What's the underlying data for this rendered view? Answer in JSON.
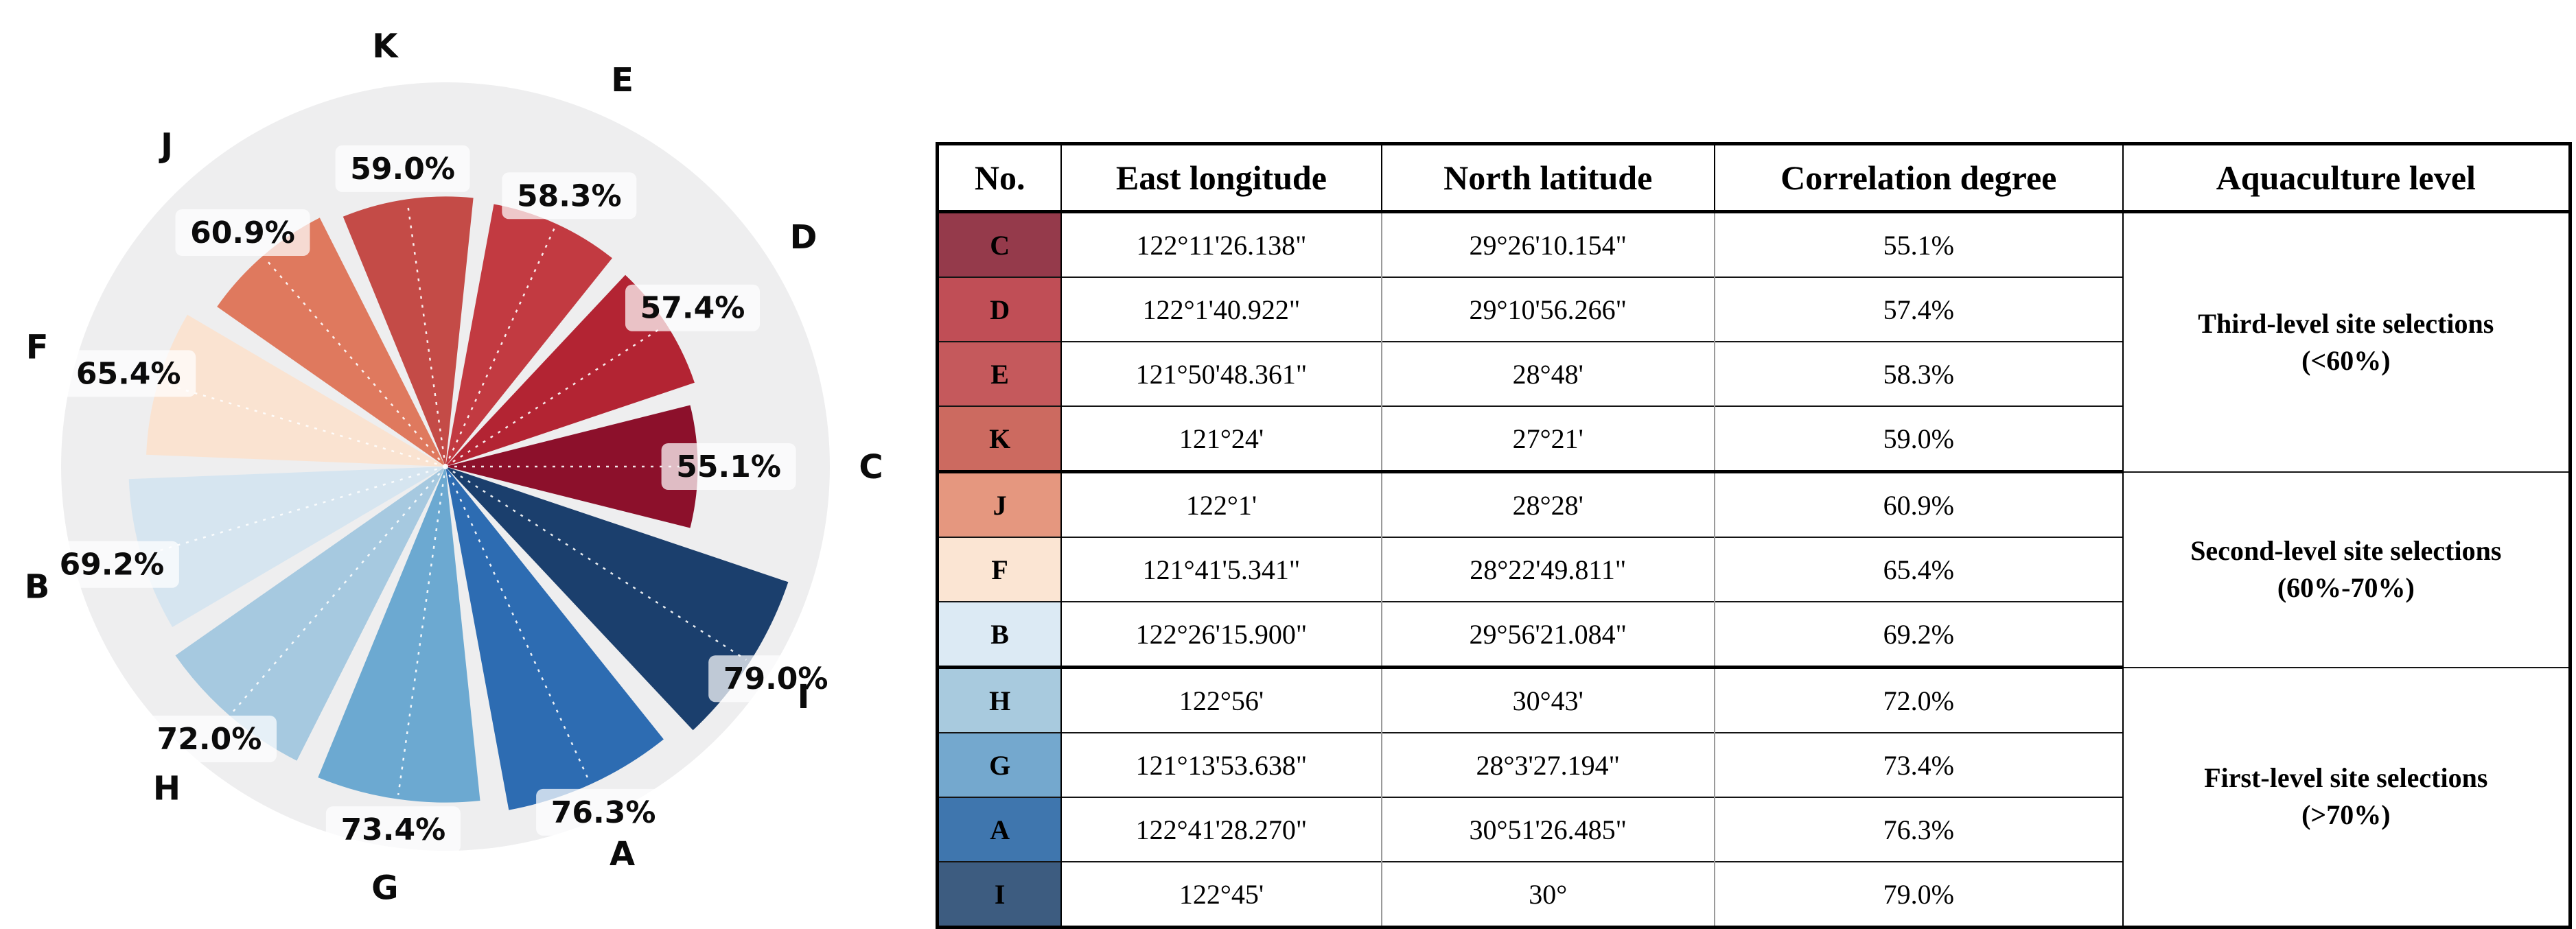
{
  "chart_data": {
    "type": "polar_rose_pie",
    "title": "",
    "value_unit": "%",
    "max_value": 79.0,
    "background_circle_color": "#eeeeef",
    "label_chip_bg": "rgba(255,255,255,0.72)",
    "centerline_color": "#ffffff",
    "legend_position": "none",
    "slices_ccw_from_east": [
      {
        "id": "C",
        "value": 55.1,
        "label": "55.1%",
        "color": "#8c102b"
      },
      {
        "id": "D",
        "value": 57.4,
        "label": "57.4%",
        "color": "#b32433"
      },
      {
        "id": "E",
        "value": 58.3,
        "label": "58.3%",
        "color": "#c23a41"
      },
      {
        "id": "K",
        "value": 59.0,
        "label": "59.0%",
        "color": "#c44b47"
      },
      {
        "id": "J",
        "value": 60.9,
        "label": "60.9%",
        "color": "#df795e"
      },
      {
        "id": "F",
        "value": 65.4,
        "label": "65.4%",
        "color": "#fae3d1"
      },
      {
        "id": "B",
        "value": 69.2,
        "label": "69.2%",
        "color": "#d6e5f0"
      },
      {
        "id": "H",
        "value": 72.0,
        "label": "72.0%",
        "color": "#a6c9e0"
      },
      {
        "id": "G",
        "value": 73.4,
        "label": "73.4%",
        "color": "#6ca9d1"
      },
      {
        "id": "A",
        "value": 76.3,
        "label": "76.3%",
        "color": "#2d6cb2"
      },
      {
        "id": "I",
        "value": 79.0,
        "label": "79.0%",
        "color": "#1b3f6d"
      }
    ]
  },
  "table": {
    "headers": [
      "No.",
      "East longitude",
      "North latitude",
      "Correlation degree",
      "Aquaculture level"
    ],
    "rows": [
      {
        "no": "C",
        "lon": "122°11'26.138\"",
        "lat": "29°26'10.154\"",
        "corr": "55.1%",
        "color": "#953a4b"
      },
      {
        "no": "D",
        "lon": "122°1'40.922\"",
        "lat": "29°10'56.266\"",
        "corr": "57.4%",
        "color": "#c04e56"
      },
      {
        "no": "E",
        "lon": "121°50'48.361\"",
        "lat": "28°48'",
        "corr": "58.3%",
        "color": "#c5595c"
      },
      {
        "no": "K",
        "lon": "121°24'",
        "lat": "27°21'",
        "corr": "59.0%",
        "color": "#cc6a60"
      },
      {
        "no": "J",
        "lon": "122°1'",
        "lat": "28°28'",
        "corr": "60.9%",
        "color": "#e5977f"
      },
      {
        "no": "F",
        "lon": "121°41'5.341\"",
        "lat": "28°22'49.811\"",
        "corr": "65.4%",
        "color": "#fbe5d3"
      },
      {
        "no": "B",
        "lon": "122°26'15.900\"",
        "lat": "29°56'21.084\"",
        "corr": "69.2%",
        "color": "#dceaf4"
      },
      {
        "no": "H",
        "lon": "122°56'",
        "lat": "30°43'",
        "corr": "72.0%",
        "color": "#a8cade"
      },
      {
        "no": "G",
        "lon": "121°13'53.638\"",
        "lat": "28°3'27.194\"",
        "corr": "73.4%",
        "color": "#74a8ce"
      },
      {
        "no": "A",
        "lon": "122°41'28.270\"",
        "lat": "30°51'26.485\"",
        "corr": "76.3%",
        "color": "#3f76ae"
      },
      {
        "no": "I",
        "lon": "122°45'",
        "lat": "30°",
        "corr": "79.0%",
        "color": "#3d5c80"
      }
    ],
    "groups": [
      {
        "line1": "Third-level site selections",
        "line2": "(<60%)",
        "rows": 4
      },
      {
        "line1": "Second-level site selections",
        "line2": "(60%-70%)",
        "rows": 3
      },
      {
        "line1": "First-level site selections",
        "line2": "(>70%)",
        "rows": 4
      }
    ]
  }
}
